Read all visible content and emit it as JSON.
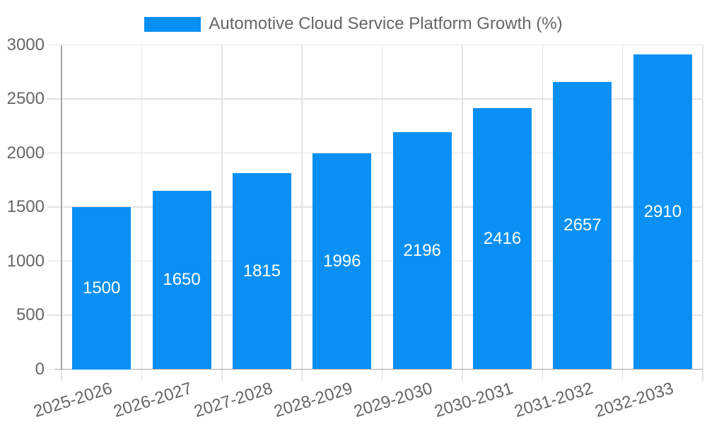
{
  "legend": {
    "label": "Automotive Cloud Service Platform Growth (%)"
  },
  "chart_data": {
    "type": "bar",
    "title": "Automotive Cloud Service Platform Growth (%)",
    "categories": [
      "2025-2026",
      "2026-2027",
      "2027-2028",
      "2028-2029",
      "2029-2030",
      "2030-2031",
      "2031-2032",
      "2032-2033"
    ],
    "values": [
      1500,
      1650,
      1815,
      1996,
      2196,
      2416,
      2657,
      2910
    ],
    "xlabel": "",
    "ylabel": "",
    "ylim": [
      0,
      3000
    ],
    "yticks": [
      0,
      500,
      1000,
      1500,
      2000,
      2500,
      3000
    ],
    "grid": true,
    "legend_position": "top",
    "bar_color": "#0a90f5",
    "value_label_color": "#ffffff",
    "text_color": "#666666",
    "grid_color": "#e3e3e3",
    "axis_color": "#a6a6a6",
    "background_color": "#ffffff"
  }
}
